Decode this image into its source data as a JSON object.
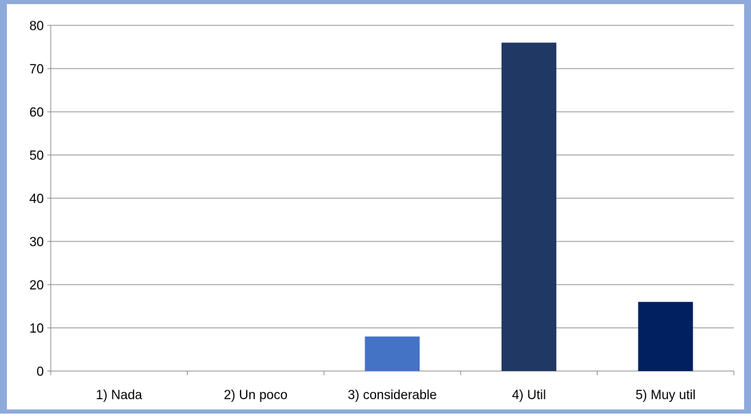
{
  "colors": {
    "frame_background": "#8EAADB",
    "plot_background": "#FFFFFF",
    "gridline": "#808080",
    "axis": "#808080",
    "text": "#000000"
  },
  "chart_data": {
    "type": "bar",
    "title": "",
    "xlabel": "",
    "ylabel": "",
    "categories": [
      "1) Nada",
      "2) Un poco",
      "3) considerable",
      "4) Util",
      "5) Muy util"
    ],
    "values": [
      0,
      0,
      8,
      76,
      16
    ],
    "bar_colors": [
      "#4472C4",
      "#4472C4",
      "#4472C4",
      "#203864",
      "#002060"
    ],
    "ylim": [
      0,
      80
    ],
    "yticks": [
      0,
      10,
      20,
      30,
      40,
      50,
      60,
      70,
      80
    ],
    "grid": true,
    "legend": "none"
  }
}
